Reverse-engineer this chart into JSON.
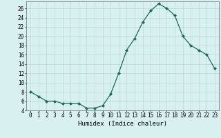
{
  "x": [
    0,
    1,
    2,
    3,
    4,
    5,
    6,
    7,
    8,
    9,
    10,
    11,
    12,
    13,
    14,
    15,
    16,
    17,
    18,
    19,
    20,
    21,
    22,
    23
  ],
  "y": [
    8,
    7,
    6,
    6,
    5.5,
    5.5,
    5.5,
    4.5,
    4.5,
    5,
    7.5,
    12,
    17,
    19.5,
    23,
    25.5,
    27,
    26,
    24.5,
    20,
    18,
    17,
    16,
    13
  ],
  "xlabel": "Humidex (Indice chaleur)",
  "xlim_min": -0.5,
  "xlim_max": 23.5,
  "ylim_min": 4,
  "ylim_max": 27.5,
  "yticks": [
    4,
    6,
    8,
    10,
    12,
    14,
    16,
    18,
    20,
    22,
    24,
    26
  ],
  "xticks": [
    0,
    1,
    2,
    3,
    4,
    5,
    6,
    7,
    8,
    9,
    10,
    11,
    12,
    13,
    14,
    15,
    16,
    17,
    18,
    19,
    20,
    21,
    22,
    23
  ],
  "line_color": "#1a6b5a",
  "marker": "D",
  "marker_size": 2.0,
  "bg_color": "#d8f0f0",
  "grid_color": "#b8d8d8",
  "label_fontsize": 6.5,
  "tick_fontsize": 5.5
}
